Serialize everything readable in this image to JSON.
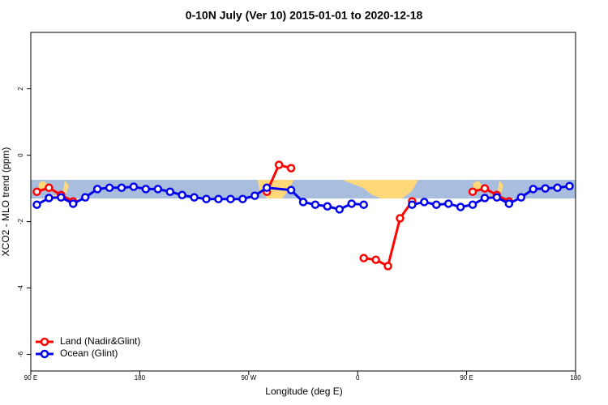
{
  "chart_data": {
    "type": "line",
    "title": "0-10N July (Ver 10)   2015-01-01 to 2020-12-18",
    "x_label": "Longitude (deg E)",
    "y_label": "XCO2 - MLO trend (ppm)",
    "xlim": [
      90,
      540
    ],
    "xticks": [
      {
        "value": 90,
        "label": "90 E"
      },
      {
        "value": 180,
        "label": "180"
      },
      {
        "value": 270,
        "label": "90 W"
      },
      {
        "value": 360,
        "label": "0"
      },
      {
        "value": 450,
        "label": "90 E"
      },
      {
        "value": 540,
        "label": "180"
      }
    ],
    "ylim": [
      -6.5,
      3.7
    ],
    "yticks": [
      -6,
      -4,
      -2,
      0,
      2
    ],
    "legend": "bottom-left",
    "series": [
      {
        "name": "Land (Nadir&Glint)",
        "color": "#ff0000",
        "x": [
          95,
          105,
          115,
          125,
          135,
          285,
          295,
          305,
          315,
          365,
          375,
          385,
          395,
          405,
          415,
          455,
          465,
          475,
          485
        ],
        "values": [
          -1.1,
          -0.98,
          -1.2,
          -1.39,
          null,
          -1.1,
          -0.29,
          -0.39,
          null,
          -3.1,
          -3.15,
          -3.34,
          -1.9,
          -1.39,
          null,
          -1.1,
          -1.0,
          -1.2,
          -1.39
        ]
      },
      {
        "name": "Ocean (Glint)",
        "color": "#0000ee",
        "x": [
          95,
          105,
          115,
          125,
          135,
          145,
          155,
          165,
          175,
          185,
          195,
          205,
          215,
          225,
          235,
          245,
          255,
          265,
          275,
          285,
          305,
          315,
          325,
          335,
          345,
          355,
          365,
          375,
          405,
          415,
          425,
          435,
          445,
          455,
          465,
          475,
          485,
          495,
          505,
          515,
          525,
          535
        ],
        "values": [
          -1.49,
          -1.29,
          -1.27,
          -1.46,
          -1.27,
          -1.02,
          -0.98,
          -0.98,
          -0.95,
          -1.02,
          -1.02,
          -1.1,
          -1.2,
          -1.27,
          -1.32,
          -1.32,
          -1.32,
          -1.32,
          -1.22,
          -0.98,
          -1.05,
          -1.41,
          -1.49,
          -1.54,
          -1.63,
          -1.46,
          -1.49,
          null,
          -1.49,
          -1.41,
          -1.49,
          -1.46,
          -1.56,
          -1.49,
          -1.29,
          -1.27,
          -1.46,
          -1.27,
          -1.02,
          -1.0,
          -0.98,
          -0.93
        ]
      }
    ]
  }
}
